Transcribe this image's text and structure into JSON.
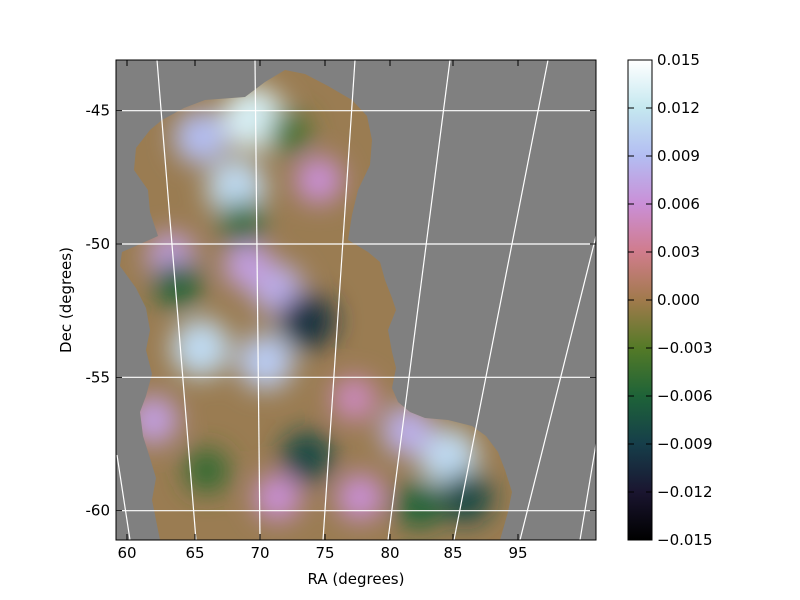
{
  "chart_data": {
    "type": "heatmap",
    "title": "",
    "xlabel": "RA (degrees)",
    "ylabel": "Dec (degrees)",
    "x_ticks": [
      "60",
      "65",
      "70",
      "75",
      "80",
      "85",
      "95"
    ],
    "y_ticks": [
      "-45",
      "-50",
      "-55",
      "-60"
    ],
    "xlim": [
      59.3,
      100
    ],
    "ylim": [
      -61.1,
      -43.1
    ],
    "colorbar": {
      "range": [
        -0.015,
        0.015
      ],
      "ticks": [
        "0.015",
        "0.012",
        "0.009",
        "0.006",
        "0.003",
        "0.000",
        "−0.003",
        "−0.006",
        "−0.009",
        "−0.012",
        "−0.015"
      ],
      "colormap": "cubehelix",
      "stops": [
        "#000000",
        "#1a1530",
        "#163e4a",
        "#1e6338",
        "#547a27",
        "#a17a4c",
        "#d07c8c",
        "#ca8fd7",
        "#b3bdf2",
        "#c5e8f0",
        "#ffffff"
      ]
    },
    "background_color": "#808080",
    "grid": "on (white, curved RA/Dec graticule)",
    "hotspots": [
      {
        "ra": 71.0,
        "dec": -45.3,
        "value": 0.013
      },
      {
        "ra": 69.5,
        "dec": -47.9,
        "value": 0.011
      },
      {
        "ra": 66.5,
        "dec": -46.0,
        "value": 0.009
      },
      {
        "ra": 66.5,
        "dec": -53.9,
        "value": 0.011
      },
      {
        "ra": 72.0,
        "dec": -54.4,
        "value": 0.01
      },
      {
        "ra": 73.0,
        "dec": -51.7,
        "value": 0.008
      },
      {
        "ra": 87.5,
        "dec": -58.0,
        "value": 0.011
      },
      {
        "ra": 84.0,
        "dec": -57.0,
        "value": 0.008
      },
      {
        "ra": 64.0,
        "dec": -50.5,
        "value": 0.007
      },
      {
        "ra": 70.5,
        "dec": -50.8,
        "value": 0.007
      },
      {
        "ra": 76.5,
        "dec": -47.6,
        "value": 0.006
      },
      {
        "ra": 62.5,
        "dec": -56.6,
        "value": 0.007
      },
      {
        "ra": 73.0,
        "dec": -59.5,
        "value": 0.006
      },
      {
        "ra": 79.5,
        "dec": -55.8,
        "value": 0.005
      },
      {
        "ra": 80.0,
        "dec": -59.5,
        "value": 0.006
      },
      {
        "ra": 75.5,
        "dec": -52.9,
        "value": -0.01
      },
      {
        "ra": 75.5,
        "dec": -58.0,
        "value": -0.008
      },
      {
        "ra": 89.0,
        "dec": -59.5,
        "value": -0.008
      },
      {
        "ra": 64.5,
        "dec": -51.5,
        "value": -0.006
      },
      {
        "ra": 70.0,
        "dec": -49.2,
        "value": -0.005
      },
      {
        "ra": 74.0,
        "dec": -45.8,
        "value": -0.004
      },
      {
        "ra": 67.0,
        "dec": -58.5,
        "value": -0.005
      },
      {
        "ra": 85.0,
        "dec": -59.8,
        "value": -0.006
      }
    ]
  }
}
